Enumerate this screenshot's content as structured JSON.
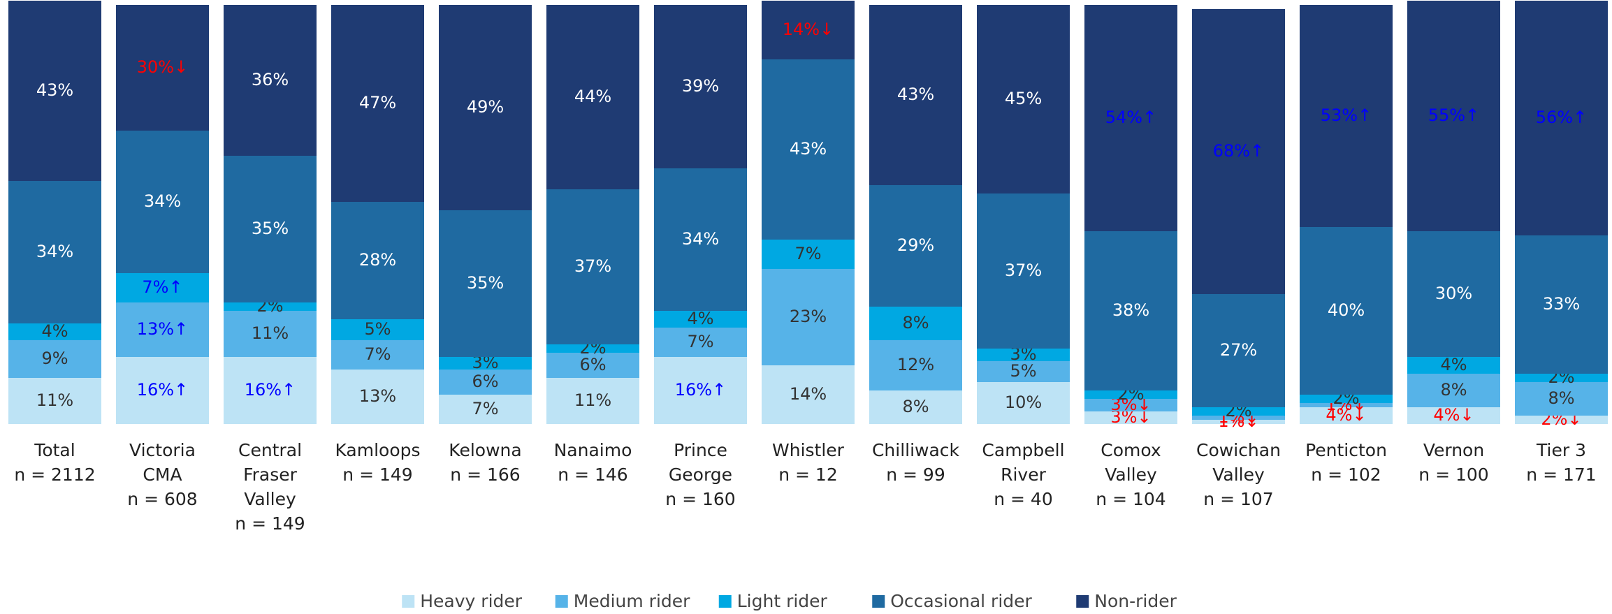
{
  "chart_data": {
    "type": "stacked_bar",
    "categories": [
      [
        "Total",
        "n = 2112"
      ],
      [
        "Victoria",
        "CMA",
        "n = 608"
      ],
      [
        "Central",
        "Fraser",
        "Valley",
        "n = 149"
      ],
      [
        "Kamloops",
        "n = 149"
      ],
      [
        "Kelowna",
        "n = 166"
      ],
      [
        "Nanaimo",
        "n = 146"
      ],
      [
        "Prince",
        "George",
        "n = 160"
      ],
      [
        "Whistler",
        "n = 12"
      ],
      [
        "Chilliwack",
        "n = 99"
      ],
      [
        "Campbell",
        "River",
        "n = 40"
      ],
      [
        "Comox",
        "Valley",
        "n = 104"
      ],
      [
        "Cowichan",
        "Valley",
        "n = 107"
      ],
      [
        "Penticton",
        "n = 102"
      ],
      [
        "Vernon",
        "n = 100"
      ],
      [
        "Tier 3",
        "n = 171"
      ]
    ],
    "ylim": [
      0,
      100
    ],
    "up_color": "#0000ff",
    "down_color": "#ff0000",
    "series": [
      {
        "name": "Heavy rider",
        "color": "#bde3f5",
        "label_color": "#333333",
        "values": [
          11,
          16,
          16,
          13,
          7,
          11,
          16,
          14,
          8,
          10,
          3,
          1,
          4,
          4,
          2
        ],
        "value_labels": [
          "11%",
          "16%↑",
          "16%↑",
          "13%",
          "7%",
          "11%",
          "16%↑",
          "14%",
          "8%",
          "10%",
          "3%↓",
          "1%↓",
          "4%↓",
          "4%↓",
          "2%↓"
        ]
      },
      {
        "name": "Medium rider",
        "color": "#56b3e8",
        "label_color": "#333333",
        "values": [
          9,
          13,
          11,
          7,
          6,
          6,
          7,
          23,
          12,
          5,
          3,
          1,
          1,
          8,
          8
        ],
        "value_labels": [
          "9%",
          "13%↑",
          "11%",
          "7%",
          "6%",
          "6%",
          "7%",
          "23%",
          "12%",
          "5%",
          "3%↓",
          "1%↓",
          "1%↓",
          "8%",
          "8%"
        ]
      },
      {
        "name": "Light rider",
        "color": "#00a8e2",
        "label_color": "#333333",
        "values": [
          4,
          7,
          2,
          5,
          3,
          2,
          4,
          7,
          8,
          3,
          2,
          2,
          2,
          4,
          2
        ],
        "value_labels": [
          "4%",
          "7%↑",
          "2%",
          "5%",
          "3%",
          "2%",
          "4%",
          "7%",
          "8%",
          "3%",
          "2%",
          "2%",
          "2%",
          "4%",
          "2%"
        ]
      },
      {
        "name": "Occasional rider",
        "color": "#1f6aa1",
        "label_color": "#ffffff",
        "values": [
          34,
          34,
          35,
          28,
          35,
          37,
          34,
          43,
          29,
          37,
          38,
          27,
          40,
          30,
          33
        ],
        "value_labels": [
          "34%",
          "34%",
          "35%",
          "28%",
          "35%",
          "37%",
          "34%",
          "43%",
          "29%",
          "37%",
          "38%",
          "27%",
          "40%",
          "30%",
          "33%"
        ]
      },
      {
        "name": "Non-rider",
        "color": "#1f3b73",
        "label_color": "#ffffff",
        "values": [
          43,
          30,
          36,
          47,
          49,
          44,
          39,
          14,
          43,
          45,
          54,
          68,
          53,
          55,
          56
        ],
        "value_labels": [
          "43%",
          "30%↓",
          "36%",
          "47%",
          "49%",
          "44%",
          "39%",
          "14%↓",
          "43%",
          "45%",
          "54%↑",
          "68%↑",
          "53%↑",
          "55%↑",
          "56%↑"
        ]
      }
    ]
  }
}
